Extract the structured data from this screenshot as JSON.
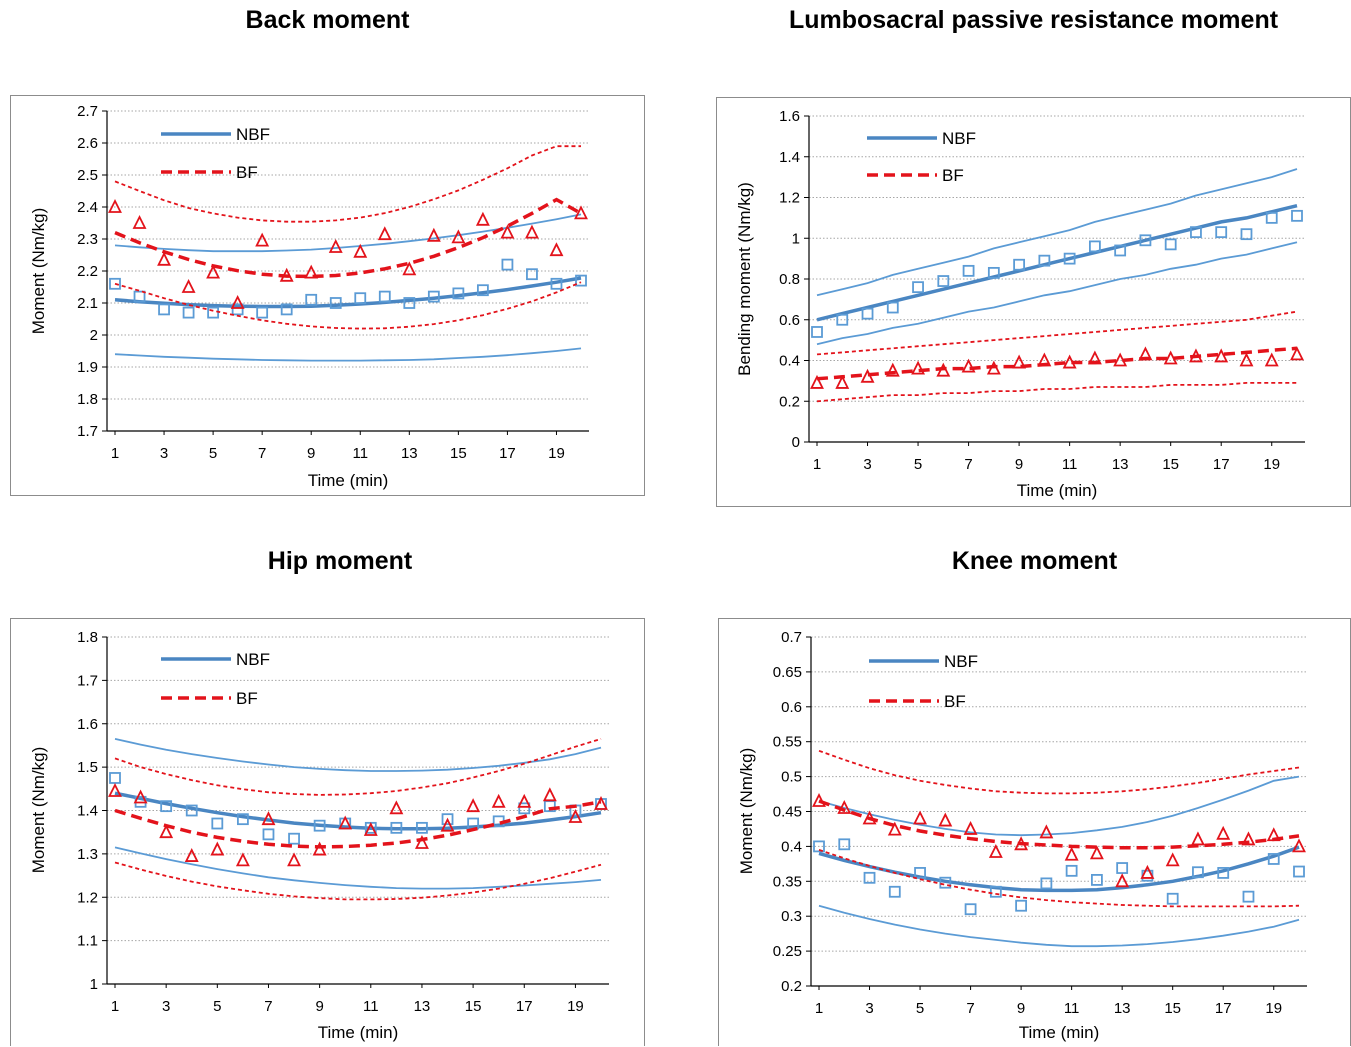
{
  "colors": {
    "nbf": "#5b9bd5",
    "nbf_fit": "#4a86c2",
    "bf": "#e3131b",
    "grid": "#a6a6a6",
    "axis": "#000000"
  },
  "chart_data": [
    {
      "type": "scatter",
      "title": "Back moment",
      "xlabel": "Time (min)",
      "ylabel": "Moment  (Nm/kg)",
      "xlim": [
        1,
        20
      ],
      "ylim": [
        1.7,
        2.7
      ],
      "yticks": [
        "1.7",
        "1.8",
        "1.9",
        "2",
        "2.1",
        "2.2",
        "2.3",
        "2.4",
        "2.5",
        "2.6",
        "2.7"
      ],
      "xticks": [
        "1",
        "3",
        "5",
        "7",
        "9",
        "11",
        "13",
        "15",
        "17",
        "19"
      ],
      "legend_position": "top-left",
      "series": [
        {
          "name": "NBF",
          "marker": "square",
          "color": "#5b9bd5",
          "x": [
            1,
            2,
            3,
            4,
            5,
            6,
            7,
            8,
            9,
            10,
            11,
            12,
            13,
            14,
            15,
            16,
            17,
            18,
            19,
            20
          ],
          "y": [
            2.16,
            2.12,
            2.08,
            2.07,
            2.07,
            2.08,
            2.07,
            2.08,
            2.11,
            2.1,
            2.115,
            2.12,
            2.1,
            2.12,
            2.13,
            2.14,
            2.22,
            2.19,
            2.16,
            2.17
          ],
          "fit": [
            2.11,
            2.104,
            2.099,
            2.095,
            2.092,
            2.09,
            2.089,
            2.089,
            2.09,
            2.093,
            2.097,
            2.102,
            2.108,
            2.115,
            2.123,
            2.132,
            2.142,
            2.153,
            2.165,
            2.178
          ],
          "upper": [
            2.28,
            2.274,
            2.269,
            2.265,
            2.262,
            2.262,
            2.262,
            2.264,
            2.267,
            2.272,
            2.278,
            2.285,
            2.293,
            2.302,
            2.312,
            2.323,
            2.335,
            2.348,
            2.362,
            2.377
          ],
          "lower": [
            1.94,
            1.936,
            1.932,
            1.929,
            1.926,
            1.924,
            1.922,
            1.921,
            1.92,
            1.92,
            1.92,
            1.921,
            1.922,
            1.924,
            1.928,
            1.932,
            1.937,
            1.943,
            1.95,
            1.958
          ]
        },
        {
          "name": "BF",
          "marker": "triangle",
          "color": "#e3131b",
          "x": [
            1,
            2,
            3,
            4,
            5,
            6,
            7,
            8,
            9,
            10,
            11,
            12,
            13,
            14,
            15,
            16,
            17,
            18,
            19,
            20
          ],
          "y": [
            2.4,
            2.35,
            2.235,
            2.15,
            2.195,
            2.1,
            2.295,
            2.185,
            2.195,
            2.275,
            2.26,
            2.315,
            2.205,
            2.31,
            2.305,
            2.36,
            2.32,
            2.32,
            2.265,
            2.38
          ],
          "fit": [
            2.32,
            2.288,
            2.26,
            2.236,
            2.216,
            2.201,
            2.19,
            2.184,
            2.183,
            2.186,
            2.194,
            2.207,
            2.224,
            2.246,
            2.273,
            2.304,
            2.34,
            2.38,
            2.423,
            2.38
          ],
          "upper": [
            2.48,
            2.45,
            2.421,
            2.397,
            2.38,
            2.367,
            2.358,
            2.354,
            2.354,
            2.358,
            2.367,
            2.381,
            2.4,
            2.424,
            2.452,
            2.485,
            2.521,
            2.561,
            2.59,
            2.59
          ],
          "lower": [
            2.16,
            2.138,
            2.115,
            2.094,
            2.076,
            2.06,
            2.046,
            2.035,
            2.027,
            2.022,
            2.02,
            2.021,
            2.026,
            2.034,
            2.046,
            2.062,
            2.082,
            2.105,
            2.133,
            2.165
          ]
        }
      ]
    },
    {
      "type": "scatter",
      "title": "Lumbosacral passive resistance moment",
      "xlabel": "Time (min)",
      "ylabel": "Bending moment (Nm/kg)",
      "xlim": [
        1,
        20
      ],
      "ylim": [
        0,
        1.6
      ],
      "yticks": [
        "0",
        "0.2",
        "0.4",
        "0.6",
        "0.8",
        "1",
        "1.2",
        "1.4",
        "1.6"
      ],
      "xticks": [
        "1",
        "3",
        "5",
        "7",
        "9",
        "11",
        "13",
        "15",
        "17",
        "19"
      ],
      "legend_position": "top-left",
      "series": [
        {
          "name": "NBF",
          "marker": "square",
          "color": "#5b9bd5",
          "x": [
            1,
            2,
            3,
            4,
            5,
            6,
            7,
            8,
            9,
            10,
            11,
            12,
            13,
            14,
            15,
            16,
            17,
            18,
            19,
            20
          ],
          "y": [
            0.54,
            0.6,
            0.63,
            0.66,
            0.76,
            0.79,
            0.84,
            0.83,
            0.87,
            0.89,
            0.9,
            0.96,
            0.94,
            0.99,
            0.97,
            1.03,
            1.03,
            1.02,
            1.1,
            1.11
          ],
          "fit": [
            0.6,
            0.63,
            0.66,
            0.69,
            0.72,
            0.75,
            0.78,
            0.81,
            0.84,
            0.87,
            0.9,
            0.93,
            0.96,
            0.99,
            1.02,
            1.05,
            1.08,
            1.1,
            1.13,
            1.16
          ],
          "upper": [
            0.72,
            0.75,
            0.78,
            0.82,
            0.85,
            0.88,
            0.91,
            0.95,
            0.98,
            1.01,
            1.04,
            1.08,
            1.11,
            1.14,
            1.17,
            1.21,
            1.24,
            1.27,
            1.3,
            1.34
          ],
          "lower": [
            0.48,
            0.51,
            0.53,
            0.56,
            0.58,
            0.61,
            0.64,
            0.66,
            0.69,
            0.72,
            0.74,
            0.77,
            0.8,
            0.82,
            0.85,
            0.87,
            0.9,
            0.92,
            0.95,
            0.98
          ]
        },
        {
          "name": "BF",
          "marker": "triangle",
          "color": "#e3131b",
          "x": [
            1,
            2,
            3,
            4,
            5,
            6,
            7,
            8,
            9,
            10,
            11,
            12,
            13,
            14,
            15,
            16,
            17,
            18,
            19,
            20
          ],
          "y": [
            0.29,
            0.29,
            0.32,
            0.35,
            0.36,
            0.35,
            0.37,
            0.36,
            0.39,
            0.4,
            0.39,
            0.41,
            0.4,
            0.43,
            0.41,
            0.42,
            0.42,
            0.4,
            0.4,
            0.43
          ],
          "fit": [
            0.31,
            0.32,
            0.33,
            0.34,
            0.35,
            0.36,
            0.36,
            0.37,
            0.37,
            0.38,
            0.39,
            0.39,
            0.4,
            0.41,
            0.41,
            0.42,
            0.43,
            0.44,
            0.45,
            0.46
          ],
          "upper": [
            0.43,
            0.44,
            0.45,
            0.46,
            0.47,
            0.48,
            0.49,
            0.5,
            0.51,
            0.52,
            0.53,
            0.54,
            0.55,
            0.56,
            0.57,
            0.58,
            0.59,
            0.6,
            0.62,
            0.64
          ],
          "lower": [
            0.2,
            0.21,
            0.22,
            0.23,
            0.23,
            0.24,
            0.24,
            0.25,
            0.25,
            0.26,
            0.26,
            0.27,
            0.27,
            0.27,
            0.28,
            0.28,
            0.28,
            0.29,
            0.29,
            0.29
          ]
        }
      ]
    },
    {
      "type": "scatter",
      "title": "Hip moment",
      "xlabel": "Time (min)",
      "ylabel": "Moment  (Nm/kg)",
      "xlim": [
        1,
        20
      ],
      "ylim": [
        1,
        1.8
      ],
      "yticks": [
        "1",
        "1.1",
        "1.2",
        "1.3",
        "1.4",
        "1.5",
        "1.6",
        "1.7",
        "1.8"
      ],
      "xticks": [
        "1",
        "3",
        "5",
        "7",
        "9",
        "11",
        "13",
        "15",
        "17",
        "19"
      ],
      "legend_position": "top-left",
      "series": [
        {
          "name": "NBF",
          "marker": "square",
          "color": "#5b9bd5",
          "x": [
            1,
            2,
            3,
            4,
            5,
            6,
            7,
            8,
            9,
            10,
            11,
            12,
            13,
            14,
            15,
            16,
            17,
            18,
            19,
            20
          ],
          "y": [
            1.475,
            1.42,
            1.41,
            1.4,
            1.37,
            1.38,
            1.345,
            1.335,
            1.365,
            1.37,
            1.36,
            1.36,
            1.36,
            1.38,
            1.37,
            1.375,
            1.405,
            1.41,
            1.4,
            1.415
          ],
          "fit": [
            1.44,
            1.428,
            1.416,
            1.405,
            1.395,
            1.386,
            1.378,
            1.371,
            1.366,
            1.362,
            1.359,
            1.358,
            1.358,
            1.359,
            1.362,
            1.366,
            1.371,
            1.378,
            1.386,
            1.395
          ],
          "upper": [
            1.565,
            1.552,
            1.54,
            1.53,
            1.521,
            1.513,
            1.506,
            1.5,
            1.496,
            1.493,
            1.491,
            1.491,
            1.492,
            1.494,
            1.498,
            1.503,
            1.51,
            1.518,
            1.53,
            1.545
          ],
          "lower": [
            1.315,
            1.301,
            1.288,
            1.276,
            1.265,
            1.255,
            1.246,
            1.239,
            1.233,
            1.228,
            1.224,
            1.221,
            1.22,
            1.22,
            1.221,
            1.224,
            1.227,
            1.231,
            1.235,
            1.24
          ]
        },
        {
          "name": "BF",
          "marker": "triangle",
          "color": "#e3131b",
          "x": [
            1,
            2,
            3,
            4,
            5,
            6,
            7,
            8,
            9,
            10,
            11,
            12,
            13,
            14,
            15,
            16,
            17,
            18,
            19,
            20
          ],
          "y": [
            1.445,
            1.43,
            1.35,
            1.295,
            1.31,
            1.285,
            1.38,
            1.285,
            1.31,
            1.37,
            1.355,
            1.405,
            1.325,
            1.365,
            1.41,
            1.42,
            1.42,
            1.435,
            1.385,
            1.415
          ],
          "fit": [
            1.4,
            1.382,
            1.365,
            1.35,
            1.338,
            1.329,
            1.322,
            1.318,
            1.316,
            1.317,
            1.32,
            1.325,
            1.333,
            1.343,
            1.356,
            1.37,
            1.386,
            1.404,
            1.41,
            1.42
          ],
          "upper": [
            1.52,
            1.5,
            1.484,
            1.47,
            1.458,
            1.449,
            1.442,
            1.438,
            1.436,
            1.437,
            1.44,
            1.445,
            1.453,
            1.463,
            1.476,
            1.491,
            1.508,
            1.527,
            1.547,
            1.565
          ],
          "lower": [
            1.28,
            1.264,
            1.249,
            1.236,
            1.225,
            1.216,
            1.208,
            1.202,
            1.198,
            1.195,
            1.195,
            1.196,
            1.199,
            1.204,
            1.211,
            1.22,
            1.231,
            1.244,
            1.259,
            1.275
          ]
        }
      ]
    },
    {
      "type": "scatter",
      "title": "Knee moment",
      "xlabel": "Time (min)",
      "ylabel": "Moment  (Nm/kg)",
      "xlim": [
        1,
        20
      ],
      "ylim": [
        0.2,
        0.7
      ],
      "yticks": [
        "0.2",
        "0.25",
        "0.3",
        "0.35",
        "0.4",
        "0.45",
        "0.5",
        "0.55",
        "0.6",
        "0.65",
        "0.7"
      ],
      "xticks": [
        "1",
        "3",
        "5",
        "7",
        "9",
        "11",
        "13",
        "15",
        "17",
        "19"
      ],
      "legend_position": "top-left",
      "series": [
        {
          "name": "NBF",
          "marker": "square",
          "color": "#5b9bd5",
          "x": [
            1,
            2,
            3,
            4,
            5,
            6,
            7,
            8,
            9,
            10,
            11,
            12,
            13,
            14,
            15,
            16,
            17,
            18,
            19,
            20
          ],
          "y": [
            0.4,
            0.403,
            0.355,
            0.335,
            0.362,
            0.348,
            0.31,
            0.335,
            0.315,
            0.347,
            0.365,
            0.352,
            0.369,
            0.358,
            0.325,
            0.363,
            0.362,
            0.328,
            0.382,
            0.364
          ],
          "fit": [
            0.39,
            0.38,
            0.371,
            0.363,
            0.356,
            0.35,
            0.345,
            0.341,
            0.338,
            0.337,
            0.337,
            0.338,
            0.341,
            0.345,
            0.35,
            0.357,
            0.365,
            0.375,
            0.386,
            0.399
          ],
          "upper": [
            0.465,
            0.455,
            0.446,
            0.438,
            0.431,
            0.425,
            0.42,
            0.417,
            0.416,
            0.417,
            0.419,
            0.423,
            0.428,
            0.435,
            0.444,
            0.455,
            0.467,
            0.48,
            0.494,
            0.5
          ],
          "lower": [
            0.315,
            0.305,
            0.296,
            0.288,
            0.281,
            0.275,
            0.27,
            0.266,
            0.262,
            0.259,
            0.257,
            0.257,
            0.258,
            0.26,
            0.263,
            0.267,
            0.272,
            0.278,
            0.285,
            0.295
          ]
        },
        {
          "name": "BF",
          "marker": "triangle",
          "color": "#e3131b",
          "x": [
            1,
            2,
            3,
            4,
            5,
            6,
            7,
            8,
            9,
            10,
            11,
            12,
            13,
            14,
            15,
            16,
            17,
            18,
            19,
            20
          ],
          "y": [
            0.465,
            0.455,
            0.44,
            0.424,
            0.44,
            0.437,
            0.425,
            0.392,
            0.403,
            0.42,
            0.388,
            0.39,
            0.35,
            0.362,
            0.38,
            0.41,
            0.418,
            0.41,
            0.416,
            0.4
          ],
          "fit": [
            0.465,
            0.452,
            0.44,
            0.43,
            0.422,
            0.416,
            0.411,
            0.407,
            0.404,
            0.402,
            0.4,
            0.399,
            0.398,
            0.398,
            0.399,
            0.401,
            0.403,
            0.406,
            0.41,
            0.415
          ],
          "upper": [
            0.537,
            0.524,
            0.512,
            0.502,
            0.494,
            0.488,
            0.483,
            0.479,
            0.477,
            0.476,
            0.476,
            0.477,
            0.479,
            0.482,
            0.486,
            0.491,
            0.497,
            0.503,
            0.508,
            0.513
          ],
          "lower": [
            0.395,
            0.383,
            0.372,
            0.362,
            0.353,
            0.345,
            0.338,
            0.332,
            0.327,
            0.323,
            0.32,
            0.318,
            0.316,
            0.315,
            0.314,
            0.314,
            0.314,
            0.314,
            0.314,
            0.315
          ]
        }
      ]
    }
  ]
}
